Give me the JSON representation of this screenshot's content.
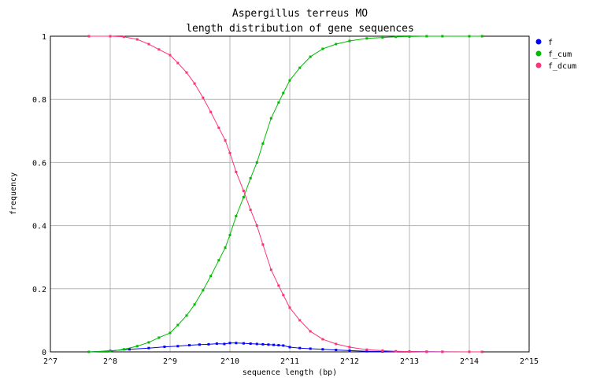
{
  "chart_data": {
    "type": "line",
    "title_line1": "Aspergillus terreus MO",
    "title_line2": "length distribution of gene sequences",
    "xlabel": "sequence length (bp)",
    "ylabel": "frequency",
    "x_scale": "log2",
    "x_ticks": [
      "2^7",
      "2^8",
      "2^9",
      "2^10",
      "2^11",
      "2^12",
      "2^13",
      "2^14",
      "2^15"
    ],
    "y_ticks": [
      "0",
      "0.2",
      "0.4",
      "0.6",
      "0.8",
      "1"
    ],
    "xlim": [
      128,
      32768
    ],
    "ylim": [
      0,
      1
    ],
    "grid": true,
    "legend_position": "right-top",
    "series": [
      {
        "name": "f",
        "color": "#0000ff",
        "x": [
          200,
          256,
          320,
          400,
          480,
          560,
          640,
          720,
          800,
          880,
          960,
          1024,
          1100,
          1200,
          1300,
          1400,
          1500,
          1600,
          1700,
          1800,
          1900,
          2048,
          2300,
          2600,
          3000,
          3500,
          4096,
          5000,
          6000,
          8192,
          10000,
          12000,
          16384,
          19000
        ],
        "values": [
          0.0,
          0.003,
          0.008,
          0.012,
          0.016,
          0.018,
          0.021,
          0.023,
          0.024,
          0.026,
          0.025,
          0.028,
          0.028,
          0.027,
          0.026,
          0.025,
          0.024,
          0.023,
          0.022,
          0.021,
          0.02,
          0.015,
          0.012,
          0.01,
          0.008,
          0.006,
          0.004,
          0.002,
          0.0015,
          0.001,
          0.0005,
          0.0003,
          0.0001,
          0.0
        ]
      },
      {
        "name": "f_cum",
        "color": "#00bb00",
        "x": [
          200,
          256,
          300,
          350,
          400,
          450,
          512,
          560,
          620,
          680,
          750,
          820,
          900,
          970,
          1024,
          1100,
          1200,
          1300,
          1400,
          1500,
          1650,
          1800,
          1900,
          2048,
          2300,
          2600,
          3000,
          3500,
          4096,
          5000,
          6000,
          7000,
          8192,
          10000,
          12000,
          16384,
          19000
        ],
        "values": [
          0.0,
          0.002,
          0.008,
          0.018,
          0.03,
          0.045,
          0.06,
          0.085,
          0.115,
          0.15,
          0.195,
          0.24,
          0.29,
          0.33,
          0.37,
          0.43,
          0.49,
          0.55,
          0.6,
          0.66,
          0.74,
          0.79,
          0.82,
          0.86,
          0.9,
          0.935,
          0.96,
          0.975,
          0.985,
          0.993,
          0.996,
          0.998,
          0.999,
          1.0,
          1.0,
          1.0,
          1.0
        ]
      },
      {
        "name": "f_dcum",
        "color": "#ff3377",
        "x": [
          200,
          256,
          300,
          350,
          400,
          450,
          512,
          560,
          620,
          680,
          750,
          820,
          900,
          970,
          1024,
          1100,
          1200,
          1300,
          1400,
          1500,
          1650,
          1800,
          1900,
          2048,
          2300,
          2600,
          3000,
          3500,
          4096,
          5000,
          6000,
          7000,
          8192,
          10000,
          12000,
          16384,
          19000
        ],
        "values": [
          1.0,
          1.0,
          0.998,
          0.99,
          0.975,
          0.958,
          0.94,
          0.915,
          0.885,
          0.85,
          0.805,
          0.76,
          0.71,
          0.67,
          0.63,
          0.57,
          0.51,
          0.45,
          0.4,
          0.34,
          0.26,
          0.21,
          0.18,
          0.14,
          0.1,
          0.065,
          0.04,
          0.025,
          0.015,
          0.007,
          0.004,
          0.002,
          0.001,
          0.0,
          0.0,
          0.0,
          0.0
        ]
      }
    ]
  }
}
